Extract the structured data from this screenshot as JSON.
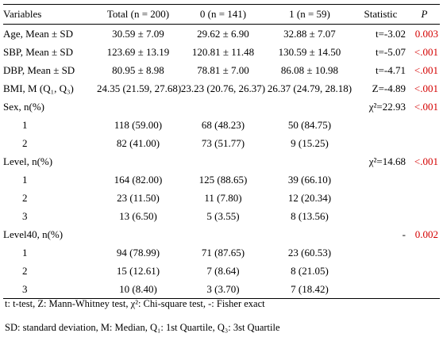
{
  "header": {
    "variables": "Variables",
    "total": "Total (n = 200)",
    "group0": "0 (n = 141)",
    "group1": "1 (n = 59)",
    "statistic": "Statistic",
    "p": "P"
  },
  "rows": [
    {
      "label": "Age, Mean ± SD",
      "total": "30.59 ± 7.09",
      "g0": "29.62 ± 6.90",
      "g1": "32.88 ± 7.07",
      "stat": "t=-3.02",
      "p": "0.003"
    },
    {
      "label": "SBP, Mean ± SD",
      "total": "123.69 ± 13.19",
      "g0": "120.81 ± 11.48",
      "g1": "130.59 ± 14.50",
      "stat": "t=-5.07",
      "p": "<.001"
    },
    {
      "label": "DBP, Mean ± SD",
      "total": "80.95 ± 8.98",
      "g0": "78.81 ± 7.00",
      "g1": "86.08 ± 10.98",
      "stat": "t=-4.71",
      "p": "<.001"
    },
    {
      "label": "BMI, M (Q₁, Q₃)",
      "total": "24.35 (21.59, 27.68)",
      "g0": "23.23 (20.76, 26.37)",
      "g1": "26.37 (24.79, 28.18)",
      "stat": "Z=-4.89",
      "p": "<.001"
    },
    {
      "label": "Sex, n(%)",
      "total": "",
      "g0": "",
      "g1": "",
      "stat": "χ²=22.93",
      "p": "<.001"
    },
    {
      "label": "1",
      "total": "118 (59.00)",
      "g0": "68 (48.23)",
      "g1": "50 (84.75)",
      "stat": "",
      "p": ""
    },
    {
      "label": "2",
      "total": "82 (41.00)",
      "g0": "73 (51.77)",
      "g1": "9 (15.25)",
      "stat": "",
      "p": ""
    },
    {
      "label": "Level, n(%)",
      "total": "",
      "g0": "",
      "g1": "",
      "stat": "χ²=14.68",
      "p": "<.001"
    },
    {
      "label": "1",
      "total": "164 (82.00)",
      "g0": "125 (88.65)",
      "g1": "39 (66.10)",
      "stat": "",
      "p": ""
    },
    {
      "label": "2",
      "total": "23 (11.50)",
      "g0": "11 (7.80)",
      "g1": "12 (20.34)",
      "stat": "",
      "p": ""
    },
    {
      "label": "3",
      "total": "13 (6.50)",
      "g0": "5 (3.55)",
      "g1": "8 (13.56)",
      "stat": "",
      "p": ""
    },
    {
      "label": "Level40, n(%)",
      "total": "",
      "g0": "",
      "g1": "",
      "stat": "-",
      "p": "0.002"
    },
    {
      "label": "1",
      "total": "94 (78.99)",
      "g0": "71 (87.65)",
      "g1": "23 (60.53)",
      "stat": "",
      "p": ""
    },
    {
      "label": "2",
      "total": "15 (12.61)",
      "g0": "7 (8.64)",
      "g1": "8 (21.05)",
      "stat": "",
      "p": ""
    },
    {
      "label": "3",
      "total": "10 (8.40)",
      "g0": "3 (3.70)",
      "g1": "7 (18.42)",
      "stat": "",
      "p": ""
    }
  ],
  "footnotes": {
    "line1": "t: t-test, Z: Mann-Whitney test, χ²: Chi-square test, -: Fisher exact",
    "line2": "SD: standard deviation, M: Median, Q₁: 1st Quartile, Q₃: 3st Quartile"
  }
}
